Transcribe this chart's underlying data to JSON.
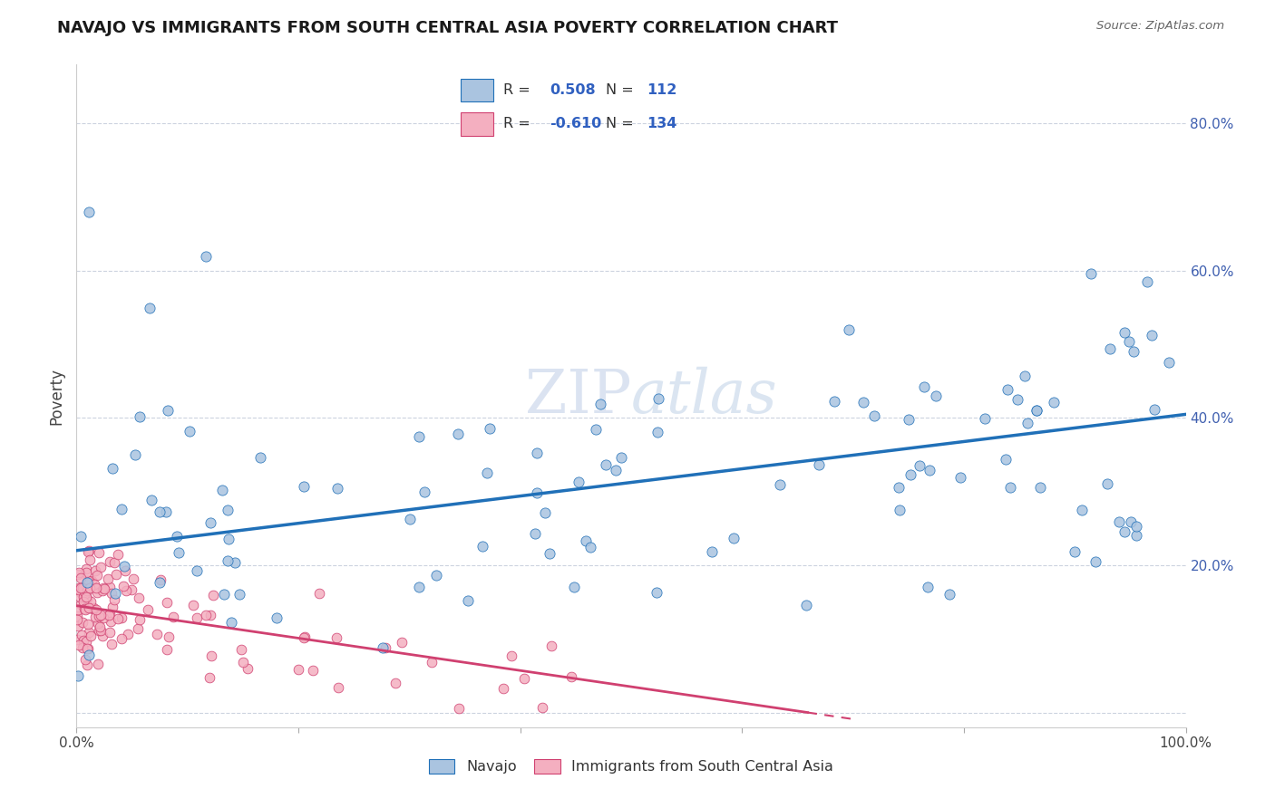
{
  "title": "NAVAJO VS IMMIGRANTS FROM SOUTH CENTRAL ASIA POVERTY CORRELATION CHART",
  "source": "Source: ZipAtlas.com",
  "ylabel": "Poverty",
  "xlim": [
    0,
    1.0
  ],
  "ylim": [
    -0.02,
    0.88
  ],
  "navajo_R": 0.508,
  "navajo_N": 112,
  "immigrants_R": -0.61,
  "immigrants_N": 134,
  "navajo_color": "#aac4e0",
  "navajo_line_color": "#2070b8",
  "immigrants_color": "#f4afc0",
  "immigrants_line_color": "#d04070",
  "watermark_zip": "ZIP",
  "watermark_atlas": "atlas",
  "background_color": "#ffffff",
  "title_fontsize": 13,
  "label_fontsize": 11,
  "navajo_intercept": 0.22,
  "navajo_slope": 0.185,
  "immigrants_intercept": 0.145,
  "immigrants_slope": -0.22
}
